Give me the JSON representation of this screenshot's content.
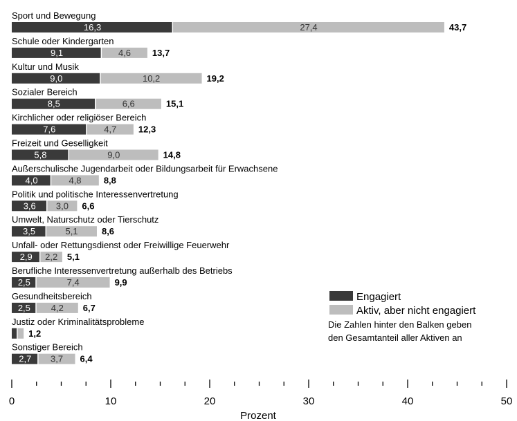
{
  "chart_data": {
    "type": "bar",
    "orientation": "horizontal",
    "stacked": true,
    "categories": [
      "Sport und Bewegung",
      "Schule oder Kindergarten",
      "Kultur und Musik",
      "Sozialer Bereich",
      "Kirchlicher oder religiöser Bereich",
      "Freizeit und Geselligkeit",
      "Außerschulische Jugendarbeit oder Bildungsarbeit  für Erwachsene",
      "Politik und politische Interessenvertretung",
      "Umwelt, Naturschutz oder Tierschutz",
      "Unfall- oder Rettungsdienst oder Freiwillige Feuerwehr",
      "Berufliche Interessenvertretung außerhalb des Betriebs",
      "Gesundheitsbereich",
      "Justiz oder Kriminalitätsprobleme",
      "Sonstiger Bereich"
    ],
    "series": [
      {
        "name": "Engagiert",
        "color": "#3a3a3a",
        "values": [
          16.3,
          9.1,
          9.0,
          8.5,
          7.6,
          5.8,
          4.0,
          3.6,
          3.5,
          2.9,
          2.5,
          2.5,
          0.6,
          2.7
        ],
        "labels": [
          "16,3",
          "9,1",
          "9,0",
          "8,5",
          "7,6",
          "5,8",
          "4,0",
          "3,6",
          "3,5",
          "2,9",
          "2,5",
          "2,5",
          "",
          "2,7"
        ]
      },
      {
        "name": "Aktiv, aber nicht engagiert",
        "color": "#bdbdbd",
        "values": [
          27.4,
          4.6,
          10.2,
          6.6,
          4.7,
          9.0,
          4.8,
          3.0,
          5.1,
          2.2,
          7.4,
          4.2,
          0.6,
          3.7
        ],
        "labels": [
          "27,4",
          "4,6",
          "10,2",
          "6,6",
          "4,7",
          "9,0",
          "4,8",
          "3,0",
          "5,1",
          "2,2",
          "7,4",
          "4,2",
          "",
          "3,7"
        ]
      }
    ],
    "totals": [
      "43,7",
      "13,7",
      "19,2",
      "15,1",
      "12,3",
      "14,8",
      "8,8",
      "6,6",
      "8,6",
      "5,1",
      "9,9",
      "6,7",
      "1,2",
      "6,4"
    ],
    "xlabel": "Prozent",
    "xlim": [
      0,
      50
    ],
    "xticks": [
      0,
      10,
      20,
      30,
      40,
      50
    ],
    "xtick_labels": [
      "0",
      "10",
      "20",
      "30",
      "40",
      "50"
    ],
    "legend": {
      "placement": "right",
      "note_lines": [
        "Die Zahlen hinter den Balken geben",
        "den Gesamtanteil aller Aktiven an"
      ]
    }
  }
}
